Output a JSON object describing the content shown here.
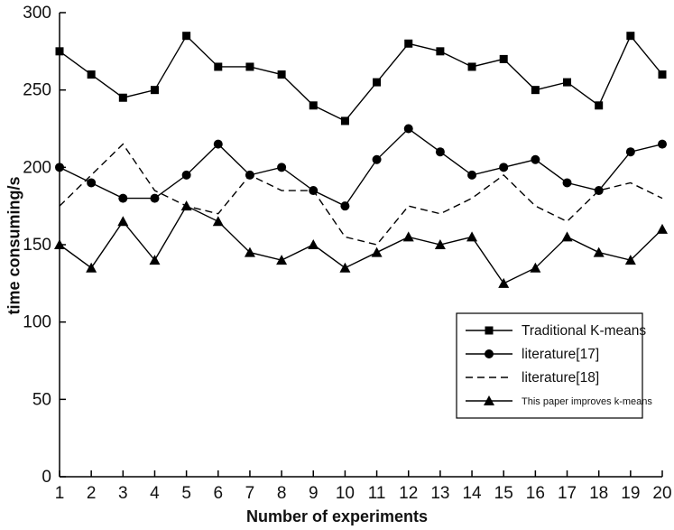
{
  "chart_data": {
    "type": "line",
    "title": "",
    "xlabel": "Number of experiments",
    "ylabel": "time consuming/s",
    "xlim": [
      1,
      20
    ],
    "ylim": [
      0,
      300
    ],
    "grid": false,
    "background": "#ffffff",
    "color": "#000000",
    "legend_position": "right-center",
    "xticks": [
      1,
      2,
      3,
      4,
      5,
      6,
      7,
      8,
      9,
      10,
      11,
      12,
      13,
      14,
      15,
      16,
      17,
      18,
      19,
      20
    ],
    "yticks": [
      0,
      50,
      100,
      150,
      200,
      250,
      300
    ],
    "x": [
      1,
      2,
      3,
      4,
      5,
      6,
      7,
      8,
      9,
      10,
      11,
      12,
      13,
      14,
      15,
      16,
      17,
      18,
      19,
      20
    ],
    "series": [
      {
        "name": "Traditional K-means",
        "marker": "square",
        "line": "solid",
        "values": [
          275,
          260,
          245,
          250,
          285,
          265,
          265,
          260,
          240,
          230,
          255,
          280,
          275,
          265,
          270,
          250,
          255,
          240,
          285,
          260
        ]
      },
      {
        "name": "literature[17]",
        "marker": "circle",
        "line": "solid",
        "values": [
          200,
          190,
          180,
          180,
          195,
          215,
          195,
          200,
          185,
          175,
          205,
          225,
          210,
          195,
          200,
          205,
          190,
          185,
          210,
          215
        ]
      },
      {
        "name": "literature[18]",
        "marker": "none",
        "line": "dashed",
        "values": [
          175,
          195,
          215,
          185,
          175,
          170,
          195,
          185,
          185,
          155,
          150,
          175,
          170,
          180,
          195,
          175,
          165,
          185,
          190,
          180
        ]
      },
      {
        "name": "This paper improves k-means",
        "marker": "triangle",
        "line": "solid",
        "values": [
          150,
          135,
          165,
          140,
          175,
          165,
          145,
          140,
          150,
          135,
          145,
          155,
          150,
          155,
          125,
          135,
          155,
          145,
          140,
          160
        ]
      }
    ]
  }
}
